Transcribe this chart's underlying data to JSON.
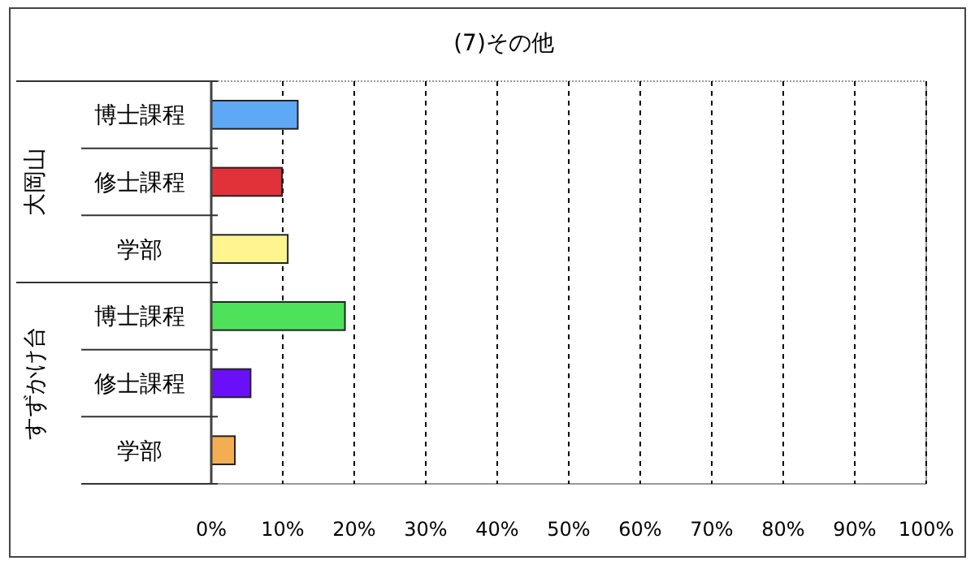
{
  "chart_data": {
    "type": "bar",
    "orientation": "horizontal",
    "title": "(7)その他",
    "categories": [
      "博士課程",
      "修士課程",
      "学部",
      "博士課程",
      "修士課程",
      "学部"
    ],
    "values": [
      12.1,
      9.9,
      10.7,
      18.7,
      5.5,
      3.3
    ],
    "colors": [
      "#5fa8f5",
      "#e03238",
      "#fff590",
      "#4ee25a",
      "#6a10f8",
      "#f4ae52"
    ],
    "annotations": [
      "大岡山",
      "すずかけ台"
    ],
    "xlim": [
      0,
      100
    ],
    "xticks": [
      {
        "value": 0,
        "label": "0%"
      },
      {
        "value": 10,
        "label": "10%"
      },
      {
        "value": 20,
        "label": "20%"
      },
      {
        "value": 30,
        "label": "30%"
      },
      {
        "value": 40,
        "label": "40%"
      },
      {
        "value": 50,
        "label": "50%"
      },
      {
        "value": 60,
        "label": "60%"
      },
      {
        "value": 70,
        "label": "70%"
      },
      {
        "value": 80,
        "label": "80%"
      },
      {
        "value": 90,
        "label": "90%"
      },
      {
        "value": 100,
        "label": "100%"
      }
    ],
    "grid": "x"
  }
}
